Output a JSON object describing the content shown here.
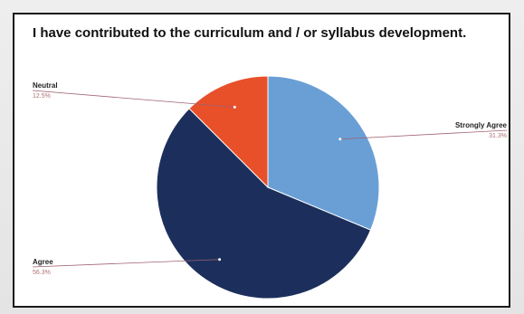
{
  "chart_data": {
    "type": "pie",
    "title": "I have contributed to the curriculum and / or syllabus development.",
    "slices": [
      {
        "label": "Strongly Agree",
        "value": 31.3,
        "display": "31.3%",
        "color": "#6a9fd6"
      },
      {
        "label": "Agree",
        "value": 56.3,
        "display": "56.3%",
        "color": "#1c2f5c"
      },
      {
        "label": "Neutral",
        "value": 12.5,
        "display": "12.5%",
        "color": "#e8502a"
      }
    ],
    "legend": "none",
    "label_line_color": "#a06070"
  }
}
